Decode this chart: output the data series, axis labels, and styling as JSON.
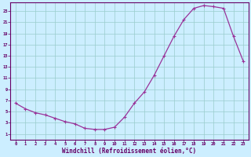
{
  "x": [
    0,
    1,
    2,
    3,
    4,
    5,
    6,
    7,
    8,
    9,
    10,
    11,
    12,
    13,
    14,
    15,
    16,
    17,
    18,
    19,
    20,
    21,
    22,
    23
  ],
  "y": [
    6.5,
    5.5,
    4.8,
    4.4,
    3.8,
    3.2,
    2.8,
    2.0,
    1.8,
    1.8,
    2.2,
    4.0,
    6.5,
    8.5,
    11.5,
    15.0,
    18.5,
    21.5,
    23.5,
    24.0,
    23.8,
    23.5,
    18.5,
    14.0
  ],
  "line_color": "#993399",
  "marker": "+",
  "marker_size": 3.5,
  "bg_color": "#cceeff",
  "grid_color": "#99cccc",
  "xlabel": "Windchill (Refroidissement éolien,°C)",
  "xlabel_color": "#660066",
  "ylabel_ticks": [
    1,
    3,
    5,
    7,
    9,
    11,
    13,
    15,
    17,
    19,
    21,
    23
  ],
  "xtick_labels": [
    "0",
    "1",
    "2",
    "3",
    "4",
    "5",
    "6",
    "7",
    "8",
    "9",
    "10",
    "11",
    "12",
    "13",
    "14",
    "15",
    "16",
    "17",
    "18",
    "19",
    "20",
    "21",
    "22",
    "23"
  ],
  "ylim": [
    0,
    24.5
  ],
  "xlim": [
    -0.5,
    23.5
  ],
  "axis_color": "#660066",
  "tick_color": "#660066",
  "lw": 0.9
}
